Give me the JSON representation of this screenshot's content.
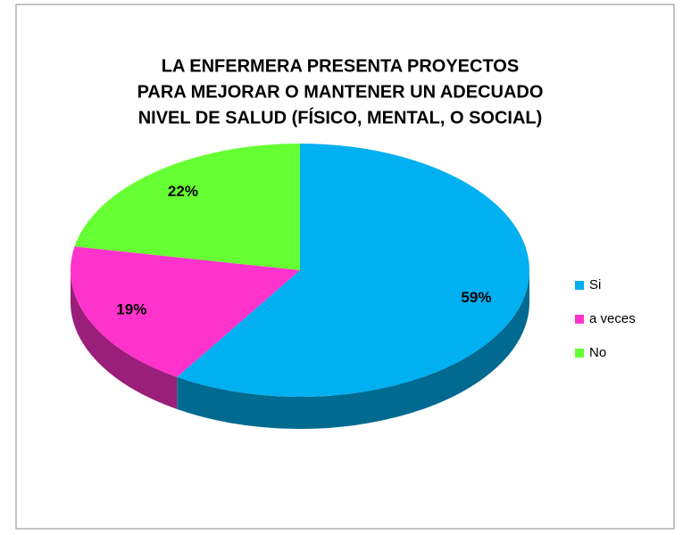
{
  "chart_data": {
    "type": "pie",
    "title": [
      "LA  ENFERMERA  PRESENTA PROYECTOS",
      "PARA MEJORAR O MANTENER UN ADECUADO",
      "NIVEL DE SALUD (FÍSICO, MENTAL, O SOCIAL)"
    ],
    "categories": [
      "Si",
      "a veces",
      "No"
    ],
    "values": [
      59,
      19,
      22
    ],
    "value_labels": [
      "59%",
      "19%",
      "22%"
    ],
    "colors": [
      "#00b0f0",
      "#ff33cc",
      "#66ff33"
    ],
    "legend": "right"
  }
}
